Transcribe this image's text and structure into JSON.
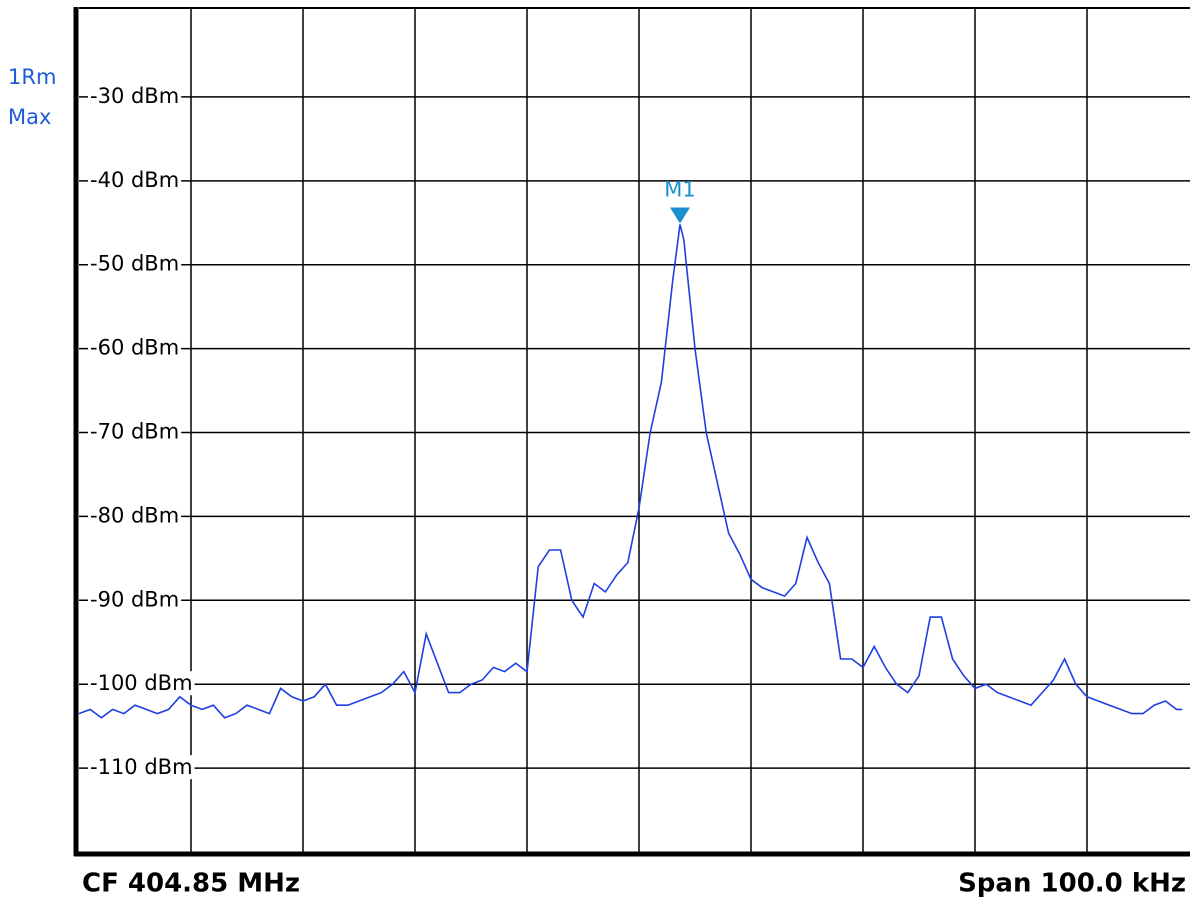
{
  "chart_data": {
    "type": "line",
    "trace_labels": [
      "1Rm",
      "Max"
    ],
    "footer_left": "CF 404.85 MHz",
    "footer_right": "Span 100.0 kHz",
    "xlim": [
      -50,
      50
    ],
    "xdivisions": 10,
    "ylim": [
      -120,
      -19.4
    ],
    "yticks": [
      {
        "value": -30,
        "label": "-30 dBm"
      },
      {
        "value": -40,
        "label": "-40 dBm"
      },
      {
        "value": -50,
        "label": "-50 dBm"
      },
      {
        "value": -60,
        "label": "-60 dBm"
      },
      {
        "value": -70,
        "label": "-70 dBm"
      },
      {
        "value": -80,
        "label": "-80 dBm"
      },
      {
        "value": -90,
        "label": "-90 dBm"
      },
      {
        "value": -100,
        "label": "-100 dBm"
      },
      {
        "value": -110,
        "label": "-110 dBm"
      }
    ],
    "grid": true,
    "series": [
      {
        "color": "#1f3fe0",
        "x": [
          -50,
          -49,
          -48,
          -47,
          -46,
          -45,
          -44,
          -43,
          -42,
          -41,
          -40,
          -39,
          -38,
          -37,
          -36,
          -35,
          -34,
          -33,
          -32,
          -31,
          -30,
          -29,
          -28,
          -27,
          -26,
          -25,
          -24,
          -23,
          -22,
          -21,
          -20,
          -19,
          -18,
          -17,
          -16,
          -15,
          -14,
          -13,
          -12,
          -11,
          -10,
          -9,
          -8,
          -7,
          -6,
          -5,
          -4,
          -3,
          -2,
          -1,
          0,
          1,
          2,
          3,
          3.66,
          4,
          5,
          6,
          7,
          8,
          9,
          10,
          11,
          12,
          13,
          14,
          15,
          16,
          17,
          18,
          19,
          20,
          21,
          22,
          23,
          24,
          25,
          26,
          27,
          28,
          29,
          30,
          31,
          32,
          33,
          34,
          35,
          36,
          37,
          38,
          39,
          40,
          41,
          42,
          43,
          44,
          45,
          46,
          47,
          48,
          48.5
        ],
        "values": [
          -103.5,
          -103,
          -104,
          -103,
          -103.5,
          -102.5,
          -103,
          -103.5,
          -103,
          -101.5,
          -102.5,
          -103,
          -102.5,
          -104,
          -103.5,
          -102.5,
          -103,
          -103.5,
          -100.5,
          -101.5,
          -102,
          -101.5,
          -100,
          -102.5,
          -102.5,
          -102,
          -101.5,
          -101,
          -100,
          -98.5,
          -101,
          -94,
          -97.5,
          -101,
          -101,
          -100,
          -99.5,
          -98,
          -98.5,
          -97.5,
          -98.5,
          -86,
          -84,
          -84,
          -90,
          -92,
          -88,
          -89,
          -87,
          -85.5,
          -79,
          -70,
          -64,
          -52,
          -45.2,
          -47,
          -60,
          -70,
          -76,
          -82,
          -84.5,
          -87.5,
          -88.5,
          -89,
          -89.5,
          -88,
          -82.5,
          -85.5,
          -88,
          -97,
          -97,
          -98,
          -95.5,
          -98,
          -100,
          -101,
          -99,
          -92,
          -92,
          -97,
          -99,
          -100.5,
          -100,
          -101,
          -101.5,
          -102,
          -102.5,
          -101,
          -99.5,
          -97,
          -100,
          -101.5,
          -102,
          -102.5,
          -103,
          -103.5,
          -103.5,
          -102.5,
          -102,
          -103,
          -103
        ]
      }
    ],
    "markers": [
      {
        "label": "M1",
        "x": 3.66,
        "value": -45.2,
        "color": "#1a8fd0"
      }
    ]
  }
}
